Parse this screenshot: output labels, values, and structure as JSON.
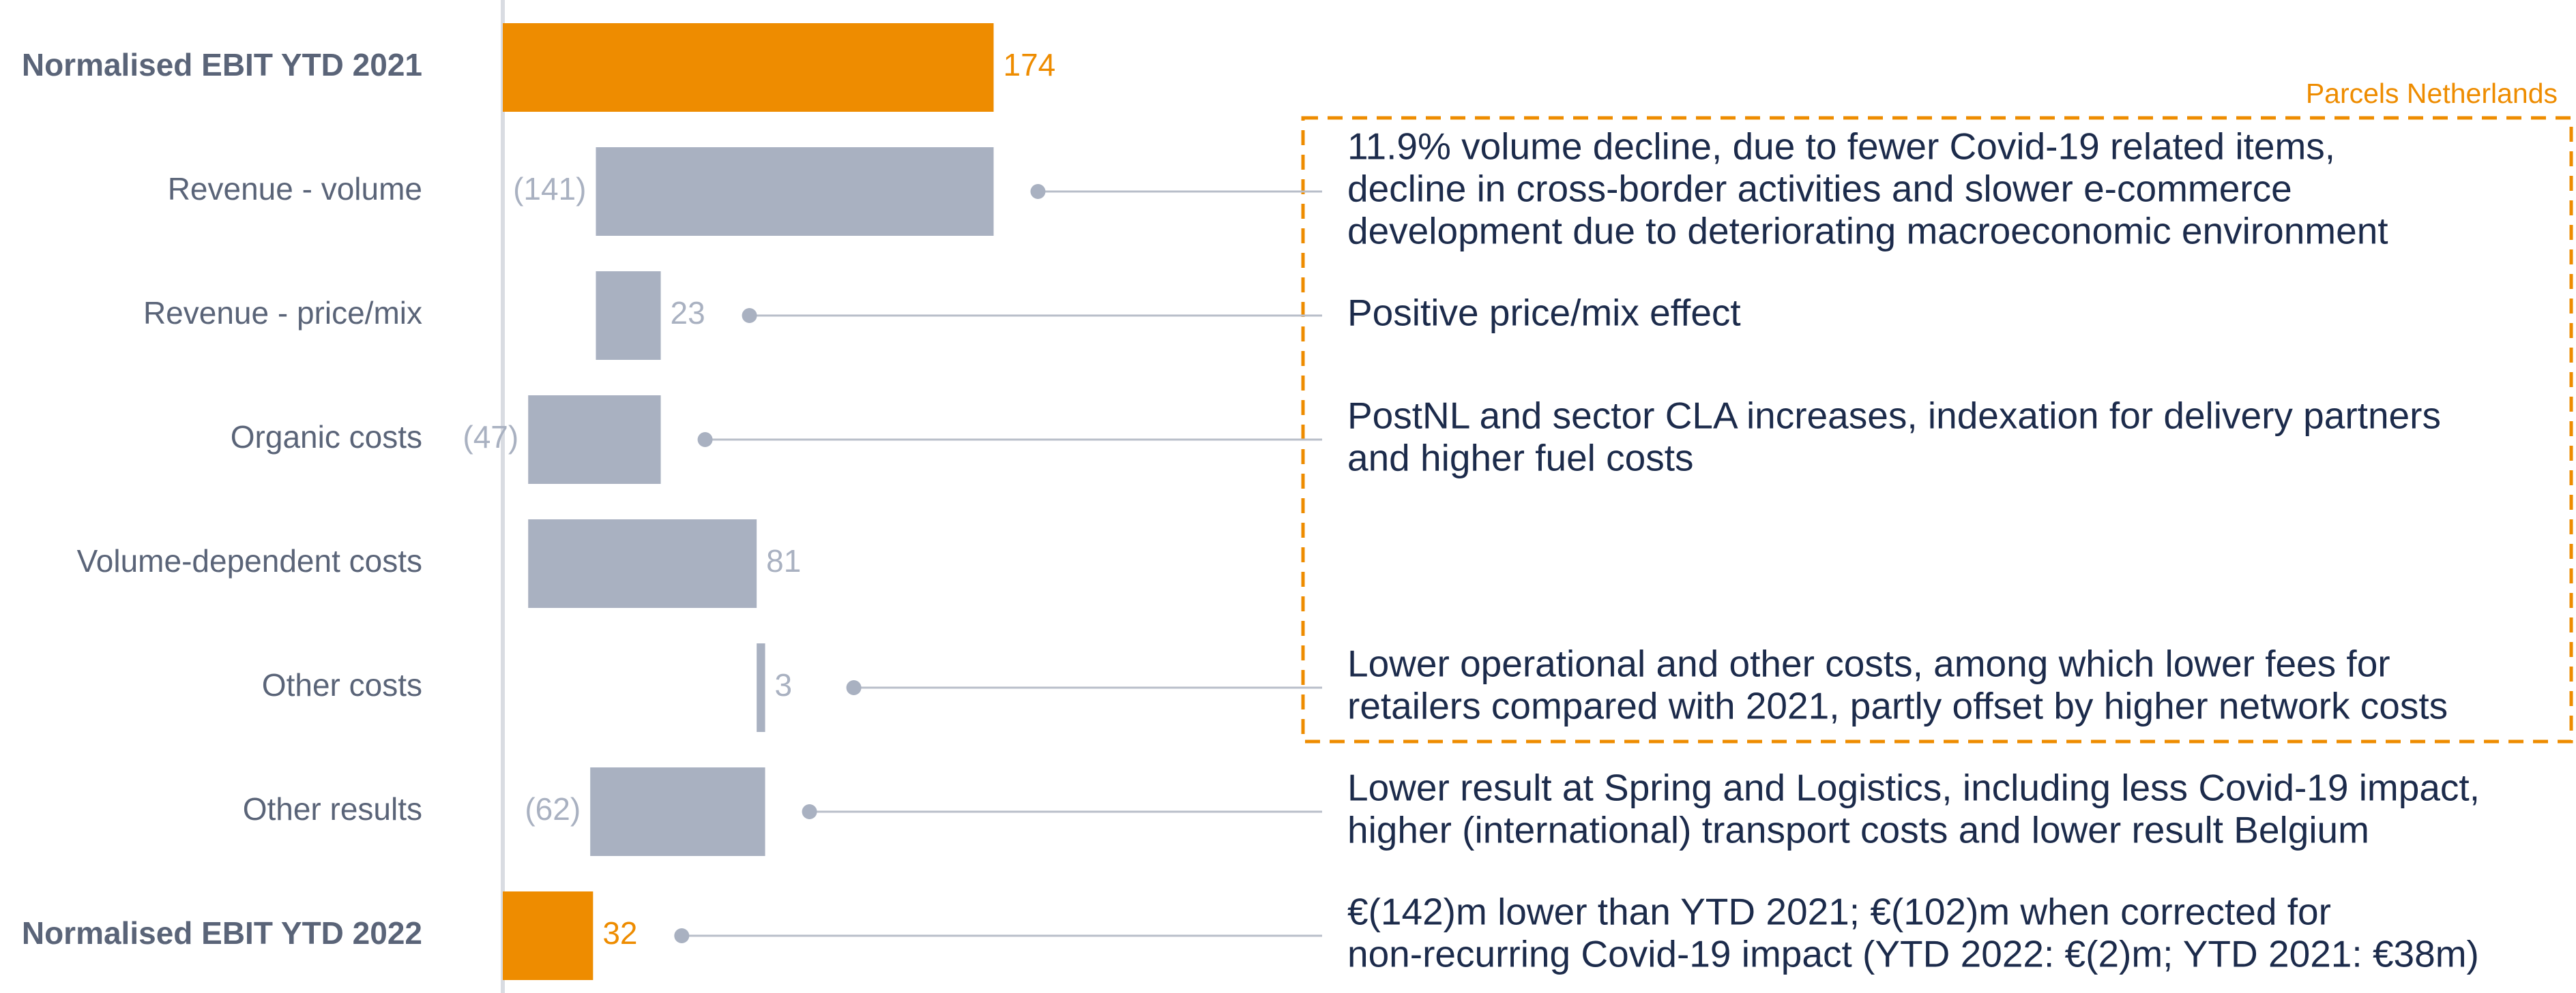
{
  "chart_data": {
    "type": "waterfall",
    "categories": [
      "Normalised EBIT YTD 2021",
      "Revenue - volume",
      "Revenue - price/mix",
      "Organic costs",
      "Volume-dependent costs",
      "Other costs",
      "Other results",
      "Normalised EBIT YTD 2022"
    ],
    "values": [
      174,
      -141,
      23,
      -47,
      81,
      3,
      -62,
      32
    ],
    "value_labels": [
      "174",
      "(141)",
      "23",
      "(47)",
      "81",
      "3",
      "(62)",
      "32"
    ],
    "is_total": [
      true,
      false,
      false,
      false,
      false,
      false,
      false,
      true
    ],
    "total_color": "#ee8c00",
    "delta_color": "#a9b1c1",
    "xlim": [
      0,
      200
    ],
    "annotations": [
      null,
      [
        "11.9% volume decline, due to fewer Covid-19 related items,",
        "decline in cross-border activities and slower e-commerce",
        "development due to deteriorating macroeconomic environment"
      ],
      [
        "Positive price/mix effect"
      ],
      [
        "PostNL and sector CLA increases, indexation for delivery partners",
        "and higher fuel costs"
      ],
      null,
      [
        "Lower operational and other costs, among which lower fees for",
        "retailers compared with 2021, partly offset by higher network costs"
      ],
      [
        "Lower result at Spring and Logistics, including less Covid-19 impact,",
        "higher (international) transport costs and lower result Belgium"
      ],
      [
        "€(142)m lower than YTD 2021; €(102)m when corrected for",
        "non-recurring Covid-19 impact (YTD 2022: €(2)m; YTD 2021: €38m)"
      ]
    ],
    "box_label": "Parcels Netherlands"
  }
}
